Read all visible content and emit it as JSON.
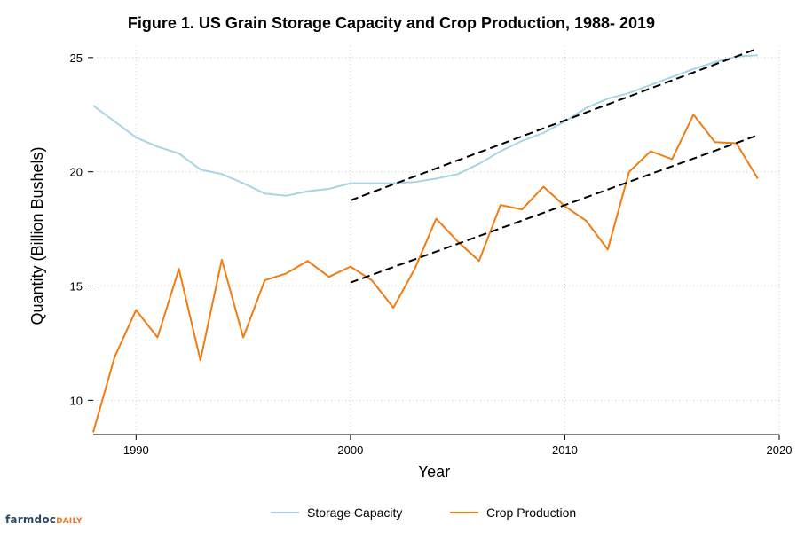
{
  "branding": {
    "logo_main": "farmdoc",
    "logo_sub": "DAILY",
    "logo_main_color": "#2b4a62",
    "logo_sub_color": "#e8792b"
  },
  "chart_data": {
    "type": "line",
    "title": "Figure 1. US Grain Storage Capacity and Crop Production, 1988- 2019",
    "xlabel": "Year",
    "ylabel": "Quantity (Billion Bushels)",
    "xlim": [
      1988,
      2020
    ],
    "ylim": [
      8.5,
      25.5
    ],
    "xticks": [
      1990,
      2000,
      2010,
      2020
    ],
    "xtick_labels": [
      "1990",
      "2000",
      "2010",
      "2020"
    ],
    "yticks": [
      10,
      15,
      20,
      25
    ],
    "ytick_labels": [
      "10",
      "15",
      "20",
      "25"
    ],
    "grid": true,
    "legend_position": "bottom-center",
    "x": [
      1988,
      1989,
      1990,
      1991,
      1992,
      1993,
      1994,
      1995,
      1996,
      1997,
      1998,
      1999,
      2000,
      2001,
      2002,
      2003,
      2004,
      2005,
      2006,
      2007,
      2008,
      2009,
      2010,
      2011,
      2012,
      2013,
      2014,
      2015,
      2016,
      2017,
      2018,
      2019
    ],
    "series": [
      {
        "name": "Storage Capacity",
        "color": "#a8d4e4",
        "values": [
          22.9,
          22.2,
          21.5,
          21.1,
          20.8,
          20.1,
          19.9,
          19.5,
          19.05,
          18.95,
          19.15,
          19.25,
          19.5,
          19.5,
          19.5,
          19.55,
          19.7,
          19.9,
          20.35,
          20.9,
          21.35,
          21.7,
          22.2,
          22.8,
          23.2,
          23.45,
          23.8,
          24.15,
          24.5,
          24.8,
          25.05,
          25.1
        ]
      },
      {
        "name": "Crop Production",
        "color": "#f07c12",
        "values": [
          8.6,
          11.9,
          13.95,
          12.75,
          15.75,
          11.75,
          16.15,
          12.75,
          15.25,
          15.55,
          16.1,
          15.4,
          15.85,
          15.25,
          14.05,
          15.75,
          17.95,
          16.95,
          16.1,
          18.55,
          18.35,
          19.35,
          18.5,
          17.85,
          16.6,
          20.0,
          20.9,
          20.55,
          22.5,
          21.3,
          21.25,
          19.7
        ]
      }
    ],
    "trendlines": [
      {
        "name": "Storage Capacity trend",
        "color": "#000000",
        "x": [
          2000,
          2019
        ],
        "values": [
          18.75,
          25.4
        ]
      },
      {
        "name": "Crop Production trend",
        "color": "#000000",
        "x": [
          2000,
          2019
        ],
        "values": [
          15.15,
          21.6
        ]
      }
    ]
  }
}
